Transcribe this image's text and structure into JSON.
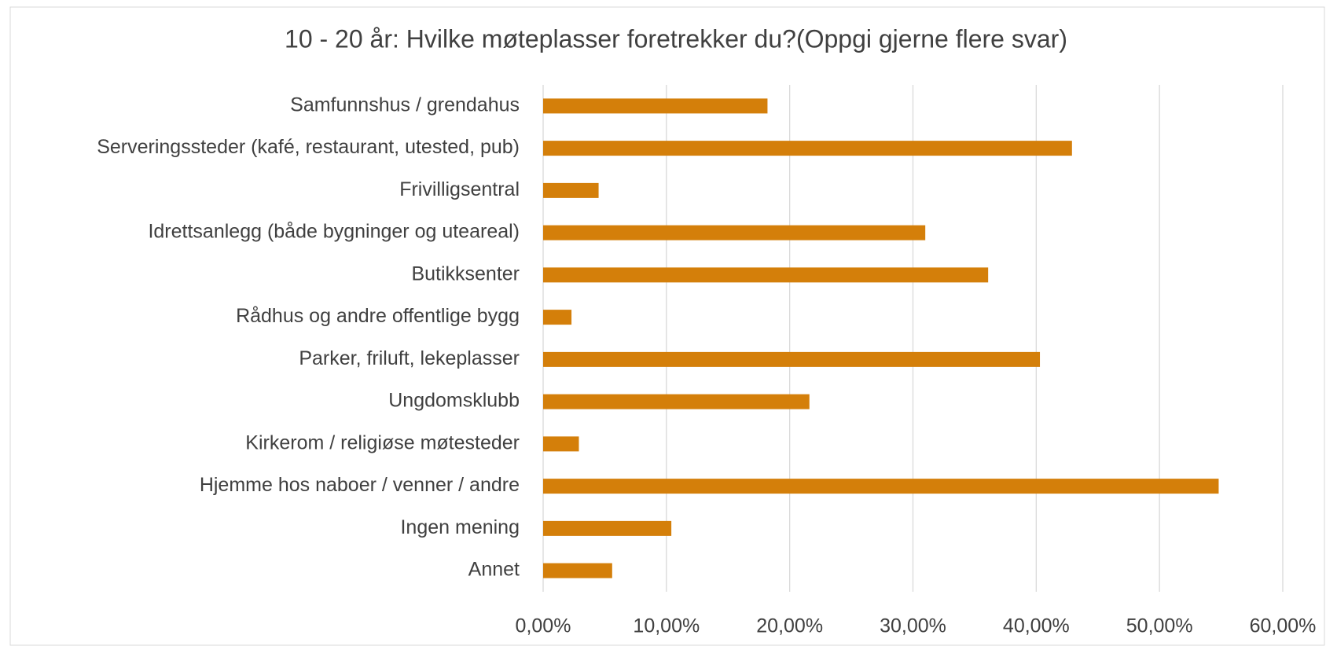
{
  "chart_data": {
    "type": "barh",
    "title": "10 - 20 år: Hvilke møteplasser foretrekker du?(Oppgi gjerne flere svar)",
    "categories": [
      "Samfunnshus / grendahus",
      "Serveringssteder (kafé, restaurant, utested, pub)",
      "Frivilligsentral",
      "Idrettsanlegg (både bygninger og uteareal)",
      "Butikksenter",
      "Rådhus og andre offentlige bygg",
      "Parker, friluft, lekeplasser",
      "Ungdomsklubb",
      "Kirkerom / religiøse møtesteder",
      "Hjemme hos naboer / venner / andre",
      "Ingen mening",
      "Annet"
    ],
    "values": [
      18.2,
      42.9,
      4.5,
      31.0,
      36.1,
      2.3,
      40.3,
      21.6,
      2.9,
      54.8,
      10.4,
      5.6
    ],
    "color": "#d47f0a",
    "xlim": [
      0,
      60
    ],
    "xticks": [
      {
        "value": 0,
        "label": "0,00%"
      },
      {
        "value": 10,
        "label": "10,00%"
      },
      {
        "value": 20,
        "label": "20,00%"
      },
      {
        "value": 30,
        "label": "30,00%"
      },
      {
        "value": 40,
        "label": "40,00%"
      },
      {
        "value": 50,
        "label": "50,00%"
      },
      {
        "value": 60,
        "label": "60,00%"
      }
    ],
    "grid": true
  }
}
